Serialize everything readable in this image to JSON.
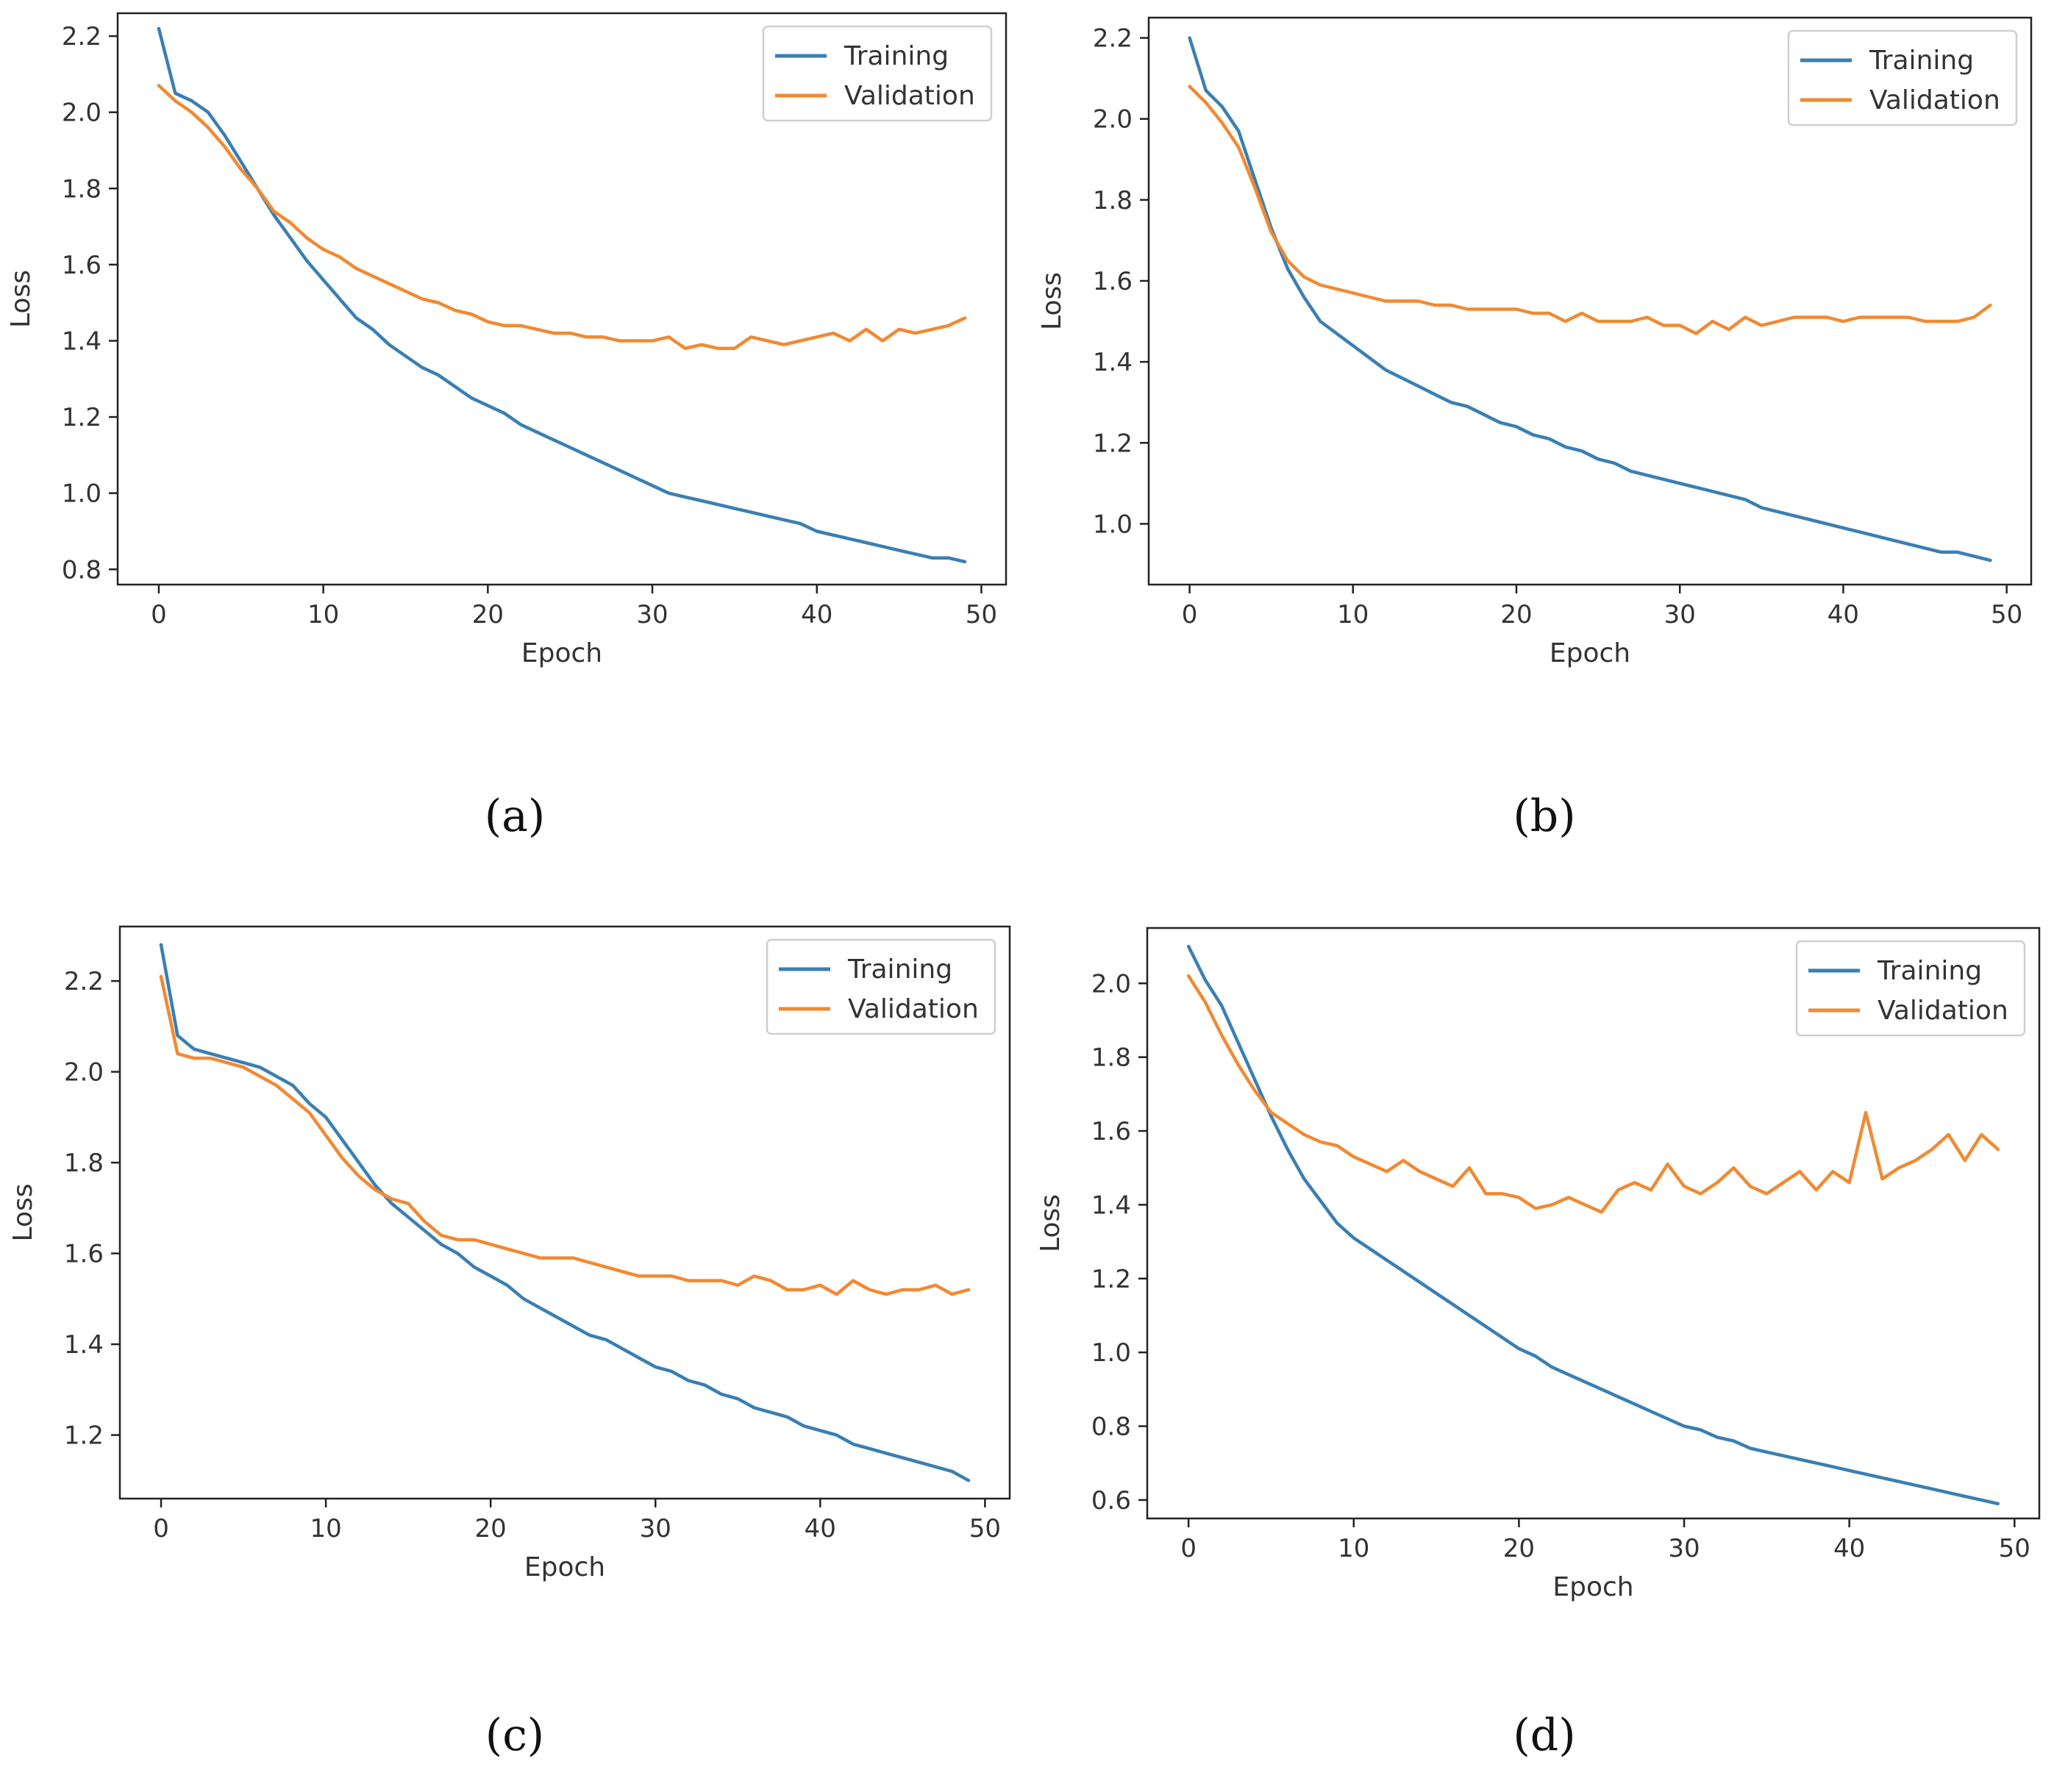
{
  "colors": {
    "training": "#3a7fb3",
    "validation": "#f08a32",
    "axes": "#222222",
    "legend_border": "#cfcfcf"
  },
  "chart_data": [
    {
      "type": "line",
      "panel_label": "(a)",
      "xlabel": "Epoch",
      "ylabel": "Loss",
      "xlim": [
        -2.5,
        51.5
      ],
      "ylim": [
        0.76,
        2.26
      ],
      "xticks": [
        0,
        10,
        20,
        30,
        40,
        50
      ],
      "yticks": [
        0.8,
        1.0,
        1.2,
        1.4,
        1.6,
        1.8,
        2.0,
        2.2
      ],
      "grid": false,
      "legend": "top-right",
      "x": [
        0,
        1,
        2,
        3,
        4,
        5,
        6,
        7,
        8,
        9,
        10,
        11,
        12,
        13,
        14,
        15,
        16,
        17,
        18,
        19,
        20,
        21,
        22,
        23,
        24,
        25,
        26,
        27,
        28,
        29,
        30,
        31,
        32,
        33,
        34,
        35,
        36,
        37,
        38,
        39,
        40,
        41,
        42,
        43,
        44,
        45,
        46,
        47,
        48,
        49
      ],
      "series": [
        {
          "name": "Training",
          "values": [
            2.22,
            2.05,
            2.03,
            2.0,
            1.94,
            1.87,
            1.8,
            1.73,
            1.67,
            1.61,
            1.56,
            1.51,
            1.46,
            1.43,
            1.39,
            1.36,
            1.33,
            1.31,
            1.28,
            1.25,
            1.23,
            1.21,
            1.18,
            1.16,
            1.14,
            1.12,
            1.1,
            1.08,
            1.06,
            1.04,
            1.02,
            1.0,
            0.99,
            0.98,
            0.97,
            0.96,
            0.95,
            0.94,
            0.93,
            0.92,
            0.9,
            0.89,
            0.88,
            0.87,
            0.86,
            0.85,
            0.84,
            0.83,
            0.83,
            0.82
          ]
        },
        {
          "name": "Validation",
          "values": [
            2.07,
            2.03,
            2.0,
            1.96,
            1.91,
            1.85,
            1.8,
            1.74,
            1.71,
            1.67,
            1.64,
            1.62,
            1.59,
            1.57,
            1.55,
            1.53,
            1.51,
            1.5,
            1.48,
            1.47,
            1.45,
            1.44,
            1.44,
            1.43,
            1.42,
            1.42,
            1.41,
            1.41,
            1.4,
            1.4,
            1.4,
            1.41,
            1.38,
            1.39,
            1.38,
            1.38,
            1.41,
            1.4,
            1.39,
            1.4,
            1.41,
            1.42,
            1.4,
            1.43,
            1.4,
            1.43,
            1.42,
            1.43,
            1.44,
            1.46
          ]
        }
      ]
    },
    {
      "type": "line",
      "panel_label": "(b)",
      "xlabel": "Epoch",
      "ylabel": "Loss",
      "xlim": [
        -2.5,
        51.5
      ],
      "ylim": [
        0.85,
        2.25
      ],
      "xticks": [
        0,
        10,
        20,
        30,
        40,
        50
      ],
      "yticks": [
        1.0,
        1.2,
        1.4,
        1.6,
        1.8,
        2.0,
        2.2
      ],
      "grid": false,
      "legend": "top-right",
      "x": [
        0,
        1,
        2,
        3,
        4,
        5,
        6,
        7,
        8,
        9,
        10,
        11,
        12,
        13,
        14,
        15,
        16,
        17,
        18,
        19,
        20,
        21,
        22,
        23,
        24,
        25,
        26,
        27,
        28,
        29,
        30,
        31,
        32,
        33,
        34,
        35,
        36,
        37,
        38,
        39,
        40,
        41,
        42,
        43,
        44,
        45,
        46,
        47,
        48,
        49
      ],
      "series": [
        {
          "name": "Training",
          "values": [
            2.2,
            2.07,
            2.03,
            1.97,
            1.85,
            1.73,
            1.63,
            1.56,
            1.5,
            1.47,
            1.44,
            1.41,
            1.38,
            1.36,
            1.34,
            1.32,
            1.3,
            1.29,
            1.27,
            1.25,
            1.24,
            1.22,
            1.21,
            1.19,
            1.18,
            1.16,
            1.15,
            1.13,
            1.12,
            1.11,
            1.1,
            1.09,
            1.08,
            1.07,
            1.06,
            1.04,
            1.03,
            1.02,
            1.01,
            1.0,
            0.99,
            0.98,
            0.97,
            0.96,
            0.95,
            0.94,
            0.93,
            0.93,
            0.92,
            0.91
          ]
        },
        {
          "name": "Validation",
          "values": [
            2.08,
            2.04,
            1.99,
            1.93,
            1.83,
            1.72,
            1.65,
            1.61,
            1.59,
            1.58,
            1.57,
            1.56,
            1.55,
            1.55,
            1.55,
            1.54,
            1.54,
            1.53,
            1.53,
            1.53,
            1.53,
            1.52,
            1.52,
            1.5,
            1.52,
            1.5,
            1.5,
            1.5,
            1.51,
            1.49,
            1.49,
            1.47,
            1.5,
            1.48,
            1.51,
            1.49,
            1.5,
            1.51,
            1.51,
            1.51,
            1.5,
            1.51,
            1.51,
            1.51,
            1.51,
            1.5,
            1.5,
            1.5,
            1.51,
            1.54
          ]
        }
      ]
    },
    {
      "type": "line",
      "panel_label": "(c)",
      "xlabel": "Epoch",
      "ylabel": "Loss",
      "xlim": [
        -2.5,
        51.5
      ],
      "ylim": [
        1.06,
        2.32
      ],
      "xticks": [
        0,
        10,
        20,
        30,
        40,
        50
      ],
      "yticks": [
        1.2,
        1.4,
        1.6,
        1.8,
        2.0,
        2.2
      ],
      "grid": false,
      "legend": "top-right",
      "x": [
        0,
        1,
        2,
        3,
        4,
        5,
        6,
        7,
        8,
        9,
        10,
        11,
        12,
        13,
        14,
        15,
        16,
        17,
        18,
        19,
        20,
        21,
        22,
        23,
        24,
        25,
        26,
        27,
        28,
        29,
        30,
        31,
        32,
        33,
        34,
        35,
        36,
        37,
        38,
        39,
        40,
        41,
        42,
        43,
        44,
        45,
        46,
        47,
        48,
        49
      ],
      "series": [
        {
          "name": "Training",
          "values": [
            2.28,
            2.08,
            2.05,
            2.04,
            2.03,
            2.02,
            2.01,
            1.99,
            1.97,
            1.93,
            1.9,
            1.85,
            1.8,
            1.75,
            1.71,
            1.68,
            1.65,
            1.62,
            1.6,
            1.57,
            1.55,
            1.53,
            1.5,
            1.48,
            1.46,
            1.44,
            1.42,
            1.41,
            1.39,
            1.37,
            1.35,
            1.34,
            1.32,
            1.31,
            1.29,
            1.28,
            1.26,
            1.25,
            1.24,
            1.22,
            1.21,
            1.2,
            1.18,
            1.17,
            1.16,
            1.15,
            1.14,
            1.13,
            1.12,
            1.1
          ]
        },
        {
          "name": "Validation",
          "values": [
            2.21,
            2.04,
            2.03,
            2.03,
            2.02,
            2.01,
            1.99,
            1.97,
            1.94,
            1.91,
            1.86,
            1.81,
            1.77,
            1.74,
            1.72,
            1.71,
            1.67,
            1.64,
            1.63,
            1.63,
            1.62,
            1.61,
            1.6,
            1.59,
            1.59,
            1.59,
            1.58,
            1.57,
            1.56,
            1.55,
            1.55,
            1.55,
            1.54,
            1.54,
            1.54,
            1.53,
            1.55,
            1.54,
            1.52,
            1.52,
            1.53,
            1.51,
            1.54,
            1.52,
            1.51,
            1.52,
            1.52,
            1.53,
            1.51,
            1.52
          ]
        }
      ]
    },
    {
      "type": "line",
      "panel_label": "(d)",
      "xlabel": "Epoch",
      "ylabel": "Loss",
      "xlim": [
        -2.5,
        51.5
      ],
      "ylim": [
        0.55,
        2.15
      ],
      "xticks": [
        0,
        10,
        20,
        30,
        40,
        50
      ],
      "yticks": [
        0.6,
        0.8,
        1.0,
        1.2,
        1.4,
        1.6,
        1.8,
        2.0
      ],
      "grid": false,
      "legend": "top-right",
      "x": [
        0,
        1,
        2,
        3,
        4,
        5,
        6,
        7,
        8,
        9,
        10,
        11,
        12,
        13,
        14,
        15,
        16,
        17,
        18,
        19,
        20,
        21,
        22,
        23,
        24,
        25,
        26,
        27,
        28,
        29,
        30,
        31,
        32,
        33,
        34,
        35,
        36,
        37,
        38,
        39,
        40,
        41,
        42,
        43,
        44,
        45,
        46,
        47,
        48,
        49
      ],
      "series": [
        {
          "name": "Training",
          "values": [
            2.1,
            2.01,
            1.94,
            1.84,
            1.74,
            1.64,
            1.55,
            1.47,
            1.41,
            1.35,
            1.31,
            1.28,
            1.25,
            1.22,
            1.19,
            1.16,
            1.13,
            1.1,
            1.07,
            1.04,
            1.01,
            0.99,
            0.96,
            0.94,
            0.92,
            0.9,
            0.88,
            0.86,
            0.84,
            0.82,
            0.8,
            0.79,
            0.77,
            0.76,
            0.74,
            0.73,
            0.72,
            0.71,
            0.7,
            0.69,
            0.68,
            0.67,
            0.66,
            0.65,
            0.64,
            0.63,
            0.62,
            0.61,
            0.6,
            0.59
          ]
        },
        {
          "name": "Validation",
          "values": [
            2.02,
            1.95,
            1.86,
            1.78,
            1.71,
            1.65,
            1.62,
            1.59,
            1.57,
            1.56,
            1.53,
            1.51,
            1.49,
            1.52,
            1.49,
            1.47,
            1.45,
            1.5,
            1.43,
            1.43,
            1.42,
            1.39,
            1.4,
            1.42,
            1.4,
            1.38,
            1.44,
            1.46,
            1.44,
            1.51,
            1.45,
            1.43,
            1.46,
            1.5,
            1.45,
            1.43,
            1.46,
            1.49,
            1.44,
            1.49,
            1.46,
            1.65,
            1.47,
            1.5,
            1.52,
            1.55,
            1.59,
            1.52,
            1.59,
            1.55
          ]
        }
      ]
    }
  ]
}
